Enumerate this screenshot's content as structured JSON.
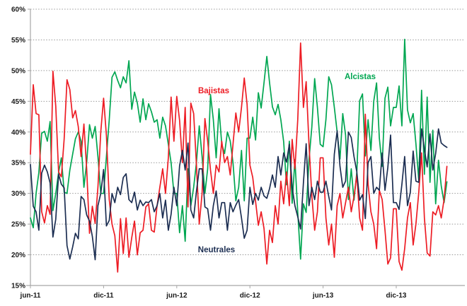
{
  "chart_data": {
    "type": "line",
    "title": "",
    "xlabel": "",
    "ylabel": "",
    "unit": "%",
    "grid": true,
    "y_axis": {
      "min": 15,
      "max": 60,
      "step": 5,
      "tick_labels": [
        "15%",
        "20%",
        "25%",
        "30%",
        "35%",
        "40%",
        "45%",
        "50%",
        "55%",
        "60%"
      ]
    },
    "x_axis": {
      "tick_labels": [
        "jun-11",
        "dic-11",
        "jun-12",
        "dic-12",
        "jun-13",
        "dic-13"
      ],
      "tick_weeks": [
        0,
        26,
        52,
        78,
        104,
        130
      ],
      "points_are": "weekly observations, jun-2011 through abr-2014"
    },
    "annotations": [
      {
        "text": "Bajistas",
        "color": "#ed1c24"
      },
      {
        "text": "Alcistas",
        "color": "#00a651"
      },
      {
        "text": "Neutrales",
        "color": "#1c2e52"
      }
    ],
    "series": [
      {
        "name": "Bajistas",
        "color": "#ed1c24",
        "values": [
          36.4,
          47.7,
          43.0,
          42.8,
          27.0,
          25.2,
          28.0,
          26.6,
          49.9,
          44.2,
          33.5,
          32.7,
          38.9,
          48.5,
          46.9,
          42.3,
          43.5,
          40.9,
          36.0,
          41.3,
          34.0,
          23.5,
          27.9,
          25.1,
          31.0,
          40.0,
          45.5,
          39.4,
          29.0,
          25.0,
          23.1,
          17.2,
          25.9,
          20.2,
          26.0,
          19.6,
          22.8,
          25.5,
          20.0,
          23.6,
          24.0,
          27.8,
          28.3,
          24.0,
          23.7,
          28.0,
          31.0,
          34.0,
          30.0,
          35.8,
          45.7,
          38.5,
          45.8,
          41.9,
          35.0,
          44.0,
          27.8,
          44.7,
          43.0,
          34.7,
          25.0,
          30.0,
          42.2,
          38.5,
          33.8,
          30.0,
          34.6,
          33.5,
          38.5,
          35.0,
          36.0,
          33.0,
          38.0,
          43.1,
          40.0,
          44.0,
          48.8,
          44.5,
          34.6,
          32.6,
          28.7,
          24.8,
          27.0,
          24.3,
          18.5,
          24.0,
          22.0,
          28.0,
          25.0,
          32.0,
          28.3,
          33.5,
          28.0,
          38.8,
          34.0,
          42.0,
          54.5,
          44.0,
          48.2,
          38.0,
          29.6,
          24.0,
          27.0,
          35.8,
          35.8,
          26.0,
          21.6,
          25.0,
          19.6,
          28.0,
          30.0,
          26.0,
          28.5,
          31.0,
          27.0,
          29.5,
          33.0,
          26.0,
          24.0,
          42.9,
          31.5,
          27.0,
          25.0,
          21.0,
          30.5,
          29.0,
          24.0,
          18.5,
          19.5,
          27.5,
          27.5,
          18.9,
          17.5,
          21.0,
          26.0,
          28.5,
          21.6,
          25.0,
          30.1,
          36.6,
          26.0,
          20.3,
          19.8,
          27.0,
          26.5,
          28.0,
          26.0,
          29.0,
          34.4
        ]
      },
      {
        "name": "Alcistas",
        "color": "#00a651",
        "values": [
          26.0,
          24.4,
          30.0,
          33.4,
          39.8,
          40.1,
          38.5,
          41.7,
          27.2,
          30.0,
          33.4,
          35.8,
          30.2,
          30.0,
          33.8,
          36.4,
          38.9,
          40.0,
          38.5,
          31.0,
          35.0,
          41.2,
          39.0,
          40.9,
          36.0,
          30.0,
          30.0,
          36.0,
          42.0,
          48.9,
          49.8,
          48.4,
          47.2,
          49.0,
          48.0,
          51.6,
          43.7,
          46.5,
          44.7,
          41.6,
          45.4,
          42.0,
          44.6,
          43.3,
          41.6,
          42.0,
          39.0,
          42.4,
          41.0,
          38.0,
          35.0,
          30.0,
          30.0,
          23.6,
          28.0,
          22.2,
          34.0,
          28.0,
          31.0,
          35.0,
          41.0,
          36.0,
          30.0,
          34.0,
          46.1,
          42.0,
          35.8,
          43.8,
          38.0,
          36.5,
          40.0,
          38.5,
          35.0,
          28.8,
          31.0,
          37.0,
          28.8,
          39.0,
          39.0,
          42.4,
          38.7,
          46.4,
          43.9,
          48.0,
          52.3,
          48.0,
          44.1,
          42.8,
          44.5,
          42.0,
          38.4,
          31.4,
          38.5,
          28.4,
          35.5,
          26.9,
          19.3,
          28.3,
          26.9,
          35.5,
          40.8,
          48.7,
          44.0,
          38.0,
          37.6,
          42.0,
          49.0,
          47.7,
          44.0,
          40.0,
          35.6,
          43.0,
          39.5,
          29.0,
          34.0,
          28.9,
          33.5,
          45.1,
          46.2,
          36.1,
          42.0,
          37.0,
          45.0,
          48.0,
          39.0,
          34.4,
          45.5,
          47.3,
          41.0,
          44.0,
          44.0,
          47.5,
          41.0,
          55.1,
          43.6,
          41.5,
          43.0,
          38.1,
          32.2,
          46.8,
          33.1,
          45.7,
          31.8,
          40.3,
          28.3,
          35.4,
          31.2,
          28.5,
          31.9
        ]
      },
      {
        "name": "Neutrales",
        "color": "#1c2e52",
        "values": [
          34.7,
          27.9,
          27.0,
          24.0,
          33.3,
          34.6,
          33.5,
          31.7,
          22.9,
          25.8,
          33.1,
          31.5,
          30.9,
          21.5,
          19.3,
          21.3,
          23.5,
          22.6,
          29.5,
          29.0,
          26.5,
          25.5,
          23.0,
          19.2,
          28.0,
          30.0,
          33.9,
          24.7,
          25.6,
          30.0,
          28.5,
          31.0,
          29.8,
          32.6,
          33.2,
          29.0,
          28.5,
          30.2,
          27.3,
          28.9,
          28.0,
          28.6,
          28.5,
          29.0,
          27.0,
          28.0,
          30.0,
          26.0,
          28.9,
          24.0,
          26.6,
          31.0,
          28.0,
          34.5,
          37.0,
          33.8,
          38.2,
          27.3,
          26.0,
          30.3,
          34.0,
          34.0,
          27.8,
          27.5,
          24.0,
          28.0,
          30.4,
          26.0,
          28.5,
          28.5,
          24.0,
          28.5,
          27.0,
          28.1,
          29.0,
          26.0,
          22.7,
          24.0,
          31.0,
          28.2,
          30.0,
          28.9,
          31.0,
          29.6,
          29.2,
          30.8,
          33.0,
          31.0,
          36.0,
          33.0,
          36.6,
          35.1,
          38.0,
          31.0,
          28.0,
          26.2,
          24.2,
          31.7,
          38.1,
          28.0,
          31.0,
          29.0,
          32.0,
          30.2,
          30.2,
          32.0,
          29.5,
          27.3,
          36.4,
          40.2,
          34.4,
          31.0,
          32.0,
          40.0,
          39.1,
          36.0,
          33.5,
          28.9,
          29.8,
          25.9,
          35.0,
          36.0,
          30.0,
          31.0,
          30.5,
          36.6,
          30.5,
          34.2,
          39.5,
          28.5,
          28.5,
          27.4,
          31.5,
          36.0,
          28.0,
          30.2,
          36.9,
          32.0,
          31.8,
          40.5,
          37.2,
          34.3,
          39.7,
          33.8,
          36.5,
          40.5,
          38.2,
          37.8,
          37.5
        ]
      }
    ],
    "colors": {
      "gridline": "#999999",
      "axis": "#a6a6a6",
      "tick_text": "#1a1a1a",
      "background": "#ffffff"
    }
  }
}
